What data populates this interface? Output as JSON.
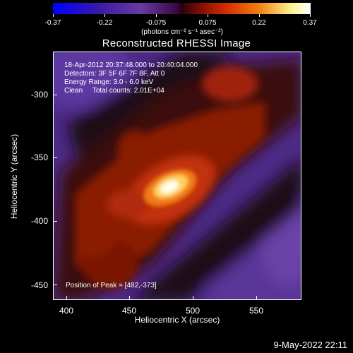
{
  "colorbar": {
    "tick_labels": [
      "-0.37",
      "-0.22",
      "-0.075",
      "0.075",
      "0.22",
      "0.37"
    ],
    "units_label": "(photons cm⁻² s⁻¹ asec⁻²)"
  },
  "title": "Reconstructed RHESSI Image",
  "info": {
    "line1": "18-Apr-2012 20:37:48.000 to 20:40:04.000",
    "line2": "Detectors: 3F 5F 6F 7F 8F, Att 0",
    "line3": "Energy Range: 3.0 - 6.0 keV",
    "line4": "Clean     Total counts: 2.01E+04",
    "peak": "Position of Peak = [482,-373]"
  },
  "axes": {
    "xlabel": "Heliocentric X (arcsec)",
    "ylabel": "Heliocentric Y (arcsec)",
    "xticks": [
      "400",
      "450",
      "500",
      "550"
    ],
    "yticks": [
      "-300",
      "-350",
      "-400",
      "-450"
    ]
  },
  "datestamp": "9-May-2022 22:11",
  "colors": {
    "background": "#000000",
    "negative": "#5a2f96",
    "peak": "#ffffff"
  }
}
